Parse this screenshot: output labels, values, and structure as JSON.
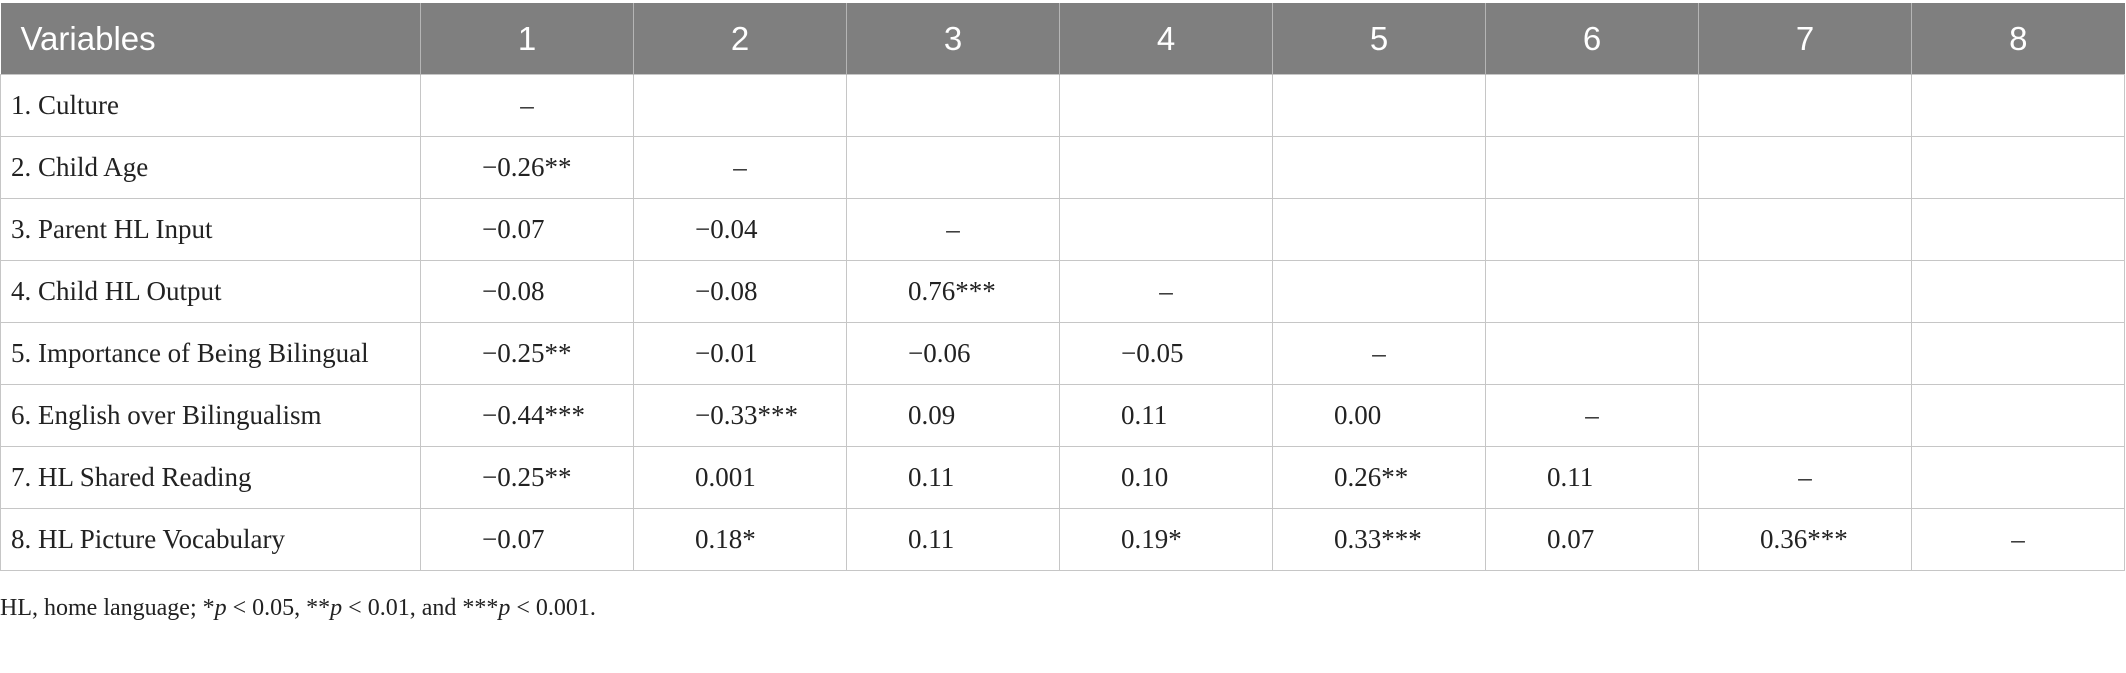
{
  "table": {
    "header": [
      "Variables",
      "1",
      "2",
      "3",
      "4",
      "5",
      "6",
      "7",
      "8"
    ],
    "rows": [
      [
        "1. Culture",
        "–",
        null,
        null,
        null,
        null,
        null,
        null,
        null
      ],
      [
        "2. Child Age",
        "−0.26**",
        "–",
        null,
        null,
        null,
        null,
        null,
        null
      ],
      [
        "3. Parent HL Input",
        "−0.07",
        "−0.04",
        "–",
        null,
        null,
        null,
        null,
        null
      ],
      [
        "4. Child HL Output",
        "−0.08",
        "−0.08",
        "0.76***",
        "–",
        null,
        null,
        null,
        null
      ],
      [
        "5. Importance of Being Bilingual",
        "−0.25**",
        "−0.01",
        "−0.06",
        "−0.05",
        "–",
        null,
        null,
        null
      ],
      [
        "6. English over Bilingualism",
        "−0.44***",
        "−0.33***",
        "0.09",
        "0.11",
        "0.00",
        "–",
        null,
        null
      ],
      [
        "7. HL Shared Reading",
        "−0.25**",
        "0.001",
        "0.11",
        "0.10",
        "0.26**",
        "0.11",
        "–",
        null
      ],
      [
        "8. HL Picture Vocabulary",
        "−0.07",
        "0.18*",
        "0.11",
        "0.19*",
        "0.33***",
        "0.07",
        "0.36***",
        "–"
      ]
    ]
  },
  "footnote": [
    "HL, home language; *",
    "p",
    " < 0.05, **",
    "p",
    " < 0.01, and ***",
    "p",
    " < 0.001."
  ]
}
